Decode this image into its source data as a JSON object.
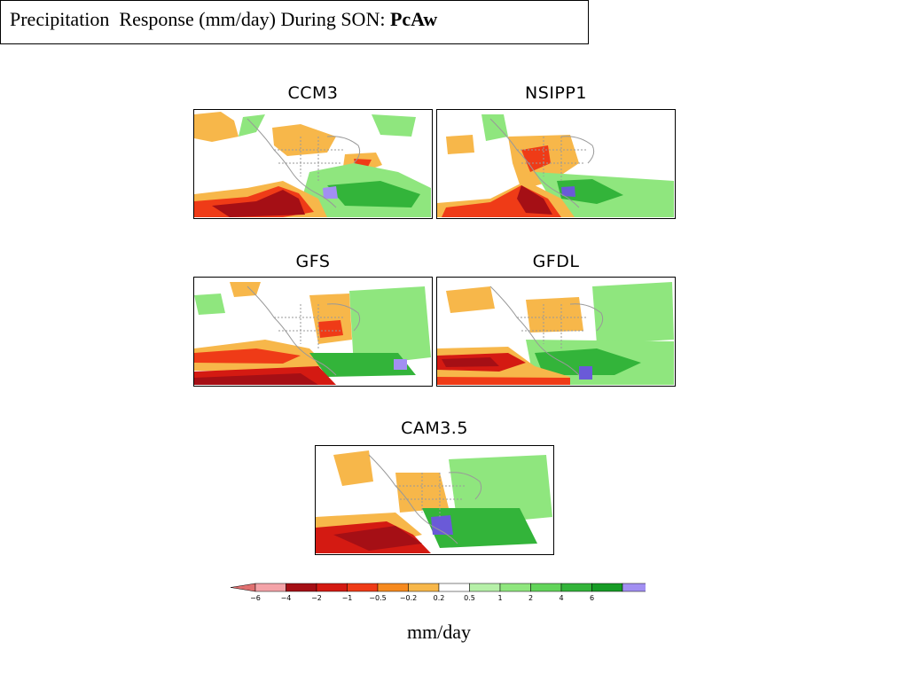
{
  "title": {
    "prefix": "Precipitation  Response (mm/day) During SON: ",
    "bold": "PcAw"
  },
  "panels": [
    {
      "name": "CCM3"
    },
    {
      "name": "NSIPP1"
    },
    {
      "name": "GFS"
    },
    {
      "name": "GFDL"
    },
    {
      "name": "CAM3.5"
    }
  ],
  "colorbar": {
    "tick_labels": [
      "−6",
      "−4",
      "−2",
      "−1",
      "−0.5",
      "−0.2",
      "0.2",
      "0.5",
      "1",
      "2",
      "4",
      "6"
    ],
    "colors": [
      "#e07070",
      "#f4a3a8",
      "#a50f15",
      "#d41a12",
      "#ef3b17",
      "#f68a1f",
      "#f7b74a",
      "#ffffff",
      "#b6f0a8",
      "#8fe67e",
      "#62d45a",
      "#33b43a",
      "#179c26",
      "#a28ff2",
      "#6a5ad8"
    ],
    "units": "mm/day"
  }
}
